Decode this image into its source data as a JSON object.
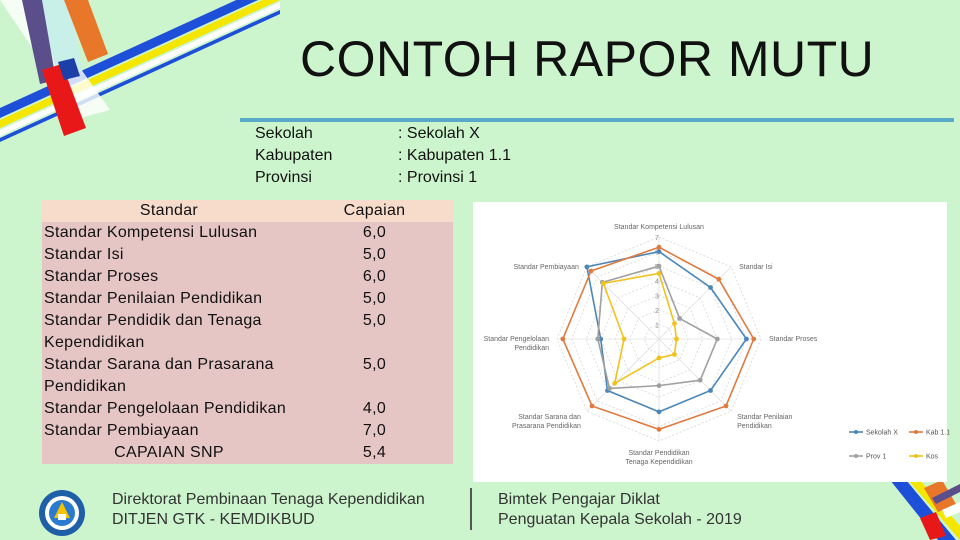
{
  "title": "CONTOH RAPOR MUTU",
  "info": {
    "labels": [
      "Sekolah",
      "Kabupaten",
      "Provinsi"
    ],
    "values": [
      ": Sekolah X",
      ": Kabupaten 1.1",
      ": Provinsi 1"
    ]
  },
  "table": {
    "header": {
      "standar": "Standar",
      "capaian": "Capaian"
    },
    "rows": [
      {
        "name": "Standar Kompetensi Lulusan",
        "value": "6,0"
      },
      {
        "name": "Standar Isi",
        "value": "5,0"
      },
      {
        "name": "Standar Proses",
        "value": "6,0"
      },
      {
        "name": "Standar Penilaian Pendidikan",
        "value": "5,0"
      },
      {
        "name": "Standar Pendidik dan Tenaga Kependidikan",
        "value": "5,0"
      },
      {
        "name": "Standar Sarana dan Prasarana Pendidikan",
        "value": "5,0"
      },
      {
        "name": "Standar Pengelolaan Pendidikan",
        "value": "4,0"
      },
      {
        "name": "Standar Pembiayaan",
        "value": "7,0"
      }
    ],
    "footer": {
      "name": "CAPAIAN SNP",
      "value": "5,4"
    }
  },
  "chart_data": {
    "type": "radar",
    "axes": [
      "Standar Kompetensi Lulusan",
      "Standar Isi",
      "Standar Proses",
      "Standar Penilaian Pendidikan",
      "Standar Pendidikan Tenaga Kependidikan",
      "Standar Sarana dan Prasarana Pendidikan",
      "Standar Pengelolaan Pendidikan",
      "Standar Pembiayaan"
    ],
    "ticks": [
      "1",
      "2",
      "3",
      "4",
      "5",
      "6",
      "7"
    ],
    "rmax": 7,
    "series": [
      {
        "name": "Sekolah X",
        "color": "#4a86b8",
        "values": [
          6,
          5,
          6,
          5,
          5,
          5,
          4,
          7
        ]
      },
      {
        "name": "Kab 1.1",
        "color": "#e07a3f",
        "values": [
          6.3,
          5.8,
          6.5,
          6.5,
          6.2,
          6.5,
          6.6,
          6.6
        ]
      },
      {
        "name": "Prov 1",
        "color": "#a0a0a0",
        "values": [
          5,
          2,
          4,
          4,
          3.2,
          4.8,
          4.2,
          5.5
        ]
      },
      {
        "name": "Kos",
        "color": "#f2c21b",
        "values": [
          4.5,
          1.5,
          1.2,
          1.5,
          1.3,
          4.3,
          2.4,
          5.4
        ]
      }
    ],
    "legend_position": "bottom-right"
  },
  "footer": {
    "left": [
      "Direktorat Pembinaan Tenaga Kependidikan",
      "DITJEN GTK - KEMDIKBUD"
    ],
    "right": [
      "Bimtek Pengajar Diklat",
      "Penguatan Kepala Sekolah - 2019"
    ]
  },
  "colors": {
    "background": "#cdf5cd",
    "rule": "#5aa9c8",
    "table_header": "#f8dccb",
    "table_body": "#e6c6c5"
  }
}
